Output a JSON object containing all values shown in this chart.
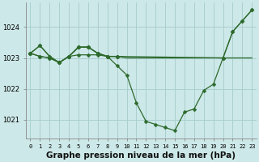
{
  "background_color": "#cde8e8",
  "grid_color": "#aacfcf",
  "line_color": "#2d6a2d",
  "xlabel": "Graphe pression niveau de la mer (hPa)",
  "xlabel_fontsize": 7.5,
  "ylabel_ticks": [
    1021,
    1022,
    1023,
    1024
  ],
  "xticks": [
    0,
    1,
    2,
    3,
    4,
    5,
    6,
    7,
    8,
    9,
    10,
    11,
    12,
    13,
    14,
    15,
    16,
    17,
    18,
    19,
    20,
    21,
    22,
    23
  ],
  "xlim": [
    -0.5,
    23.5
  ],
  "ylim": [
    1020.4,
    1024.8
  ],
  "line_dip": [
    1023.15,
    1023.4,
    1023.05,
    1022.85,
    1023.05,
    1023.35,
    1023.35,
    1023.15,
    1023.05,
    1022.75,
    1022.45,
    1021.55,
    1020.95,
    1020.85,
    1020.75,
    1020.65,
    1021.25,
    1021.35,
    1021.95,
    1022.15,
    1023.0,
    1023.85,
    1024.2,
    1024.55
  ],
  "line_flat": [
    1023.15,
    1023.05,
    1023.0,
    1022.85,
    1023.05,
    1023.1,
    1023.1,
    1023.1,
    1023.05,
    1023.05,
    1023.0,
    1023.0,
    1023.0,
    1023.0,
    1023.0,
    1023.0,
    1023.0,
    1023.0,
    1023.0,
    1023.0,
    1023.0,
    1023.0,
    1023.0,
    1023.0
  ],
  "line_rise_x": [
    0,
    1,
    2,
    3,
    4,
    5,
    6,
    7,
    8,
    9,
    20,
    21,
    22,
    23
  ],
  "line_rise_y": [
    1023.15,
    1023.05,
    1023.0,
    1022.85,
    1023.05,
    1023.35,
    1023.35,
    1023.15,
    1023.05,
    1023.05,
    1023.0,
    1023.85,
    1024.2,
    1024.55
  ],
  "line_short1_x": [
    0,
    1,
    2,
    3,
    4,
    5,
    6,
    7,
    8,
    9
  ],
  "line_short1_y": [
    1023.15,
    1023.4,
    1023.05,
    1022.85,
    1023.05,
    1023.35,
    1023.35,
    1023.15,
    1023.05,
    1023.05
  ]
}
